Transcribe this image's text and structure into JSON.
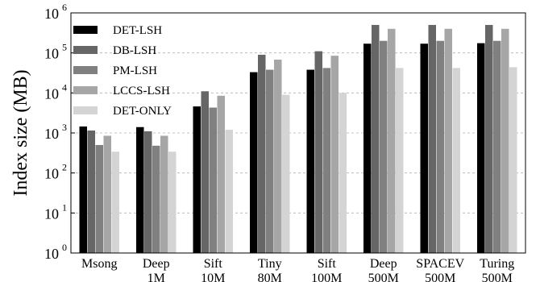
{
  "chart_data": {
    "type": "bar",
    "title": "",
    "xlabel": "",
    "ylabel": "Index size (MB)",
    "y_scale": "log",
    "ylim": [
      1,
      1000000
    ],
    "y_ticks": [
      {
        "value": 1,
        "base": "10",
        "exp": "0"
      },
      {
        "value": 10,
        "base": "10",
        "exp": "1"
      },
      {
        "value": 100,
        "base": "10",
        "exp": "2"
      },
      {
        "value": 1000,
        "base": "10",
        "exp": "3"
      },
      {
        "value": 10000,
        "base": "10",
        "exp": "4"
      },
      {
        "value": 100000,
        "base": "10",
        "exp": "5"
      },
      {
        "value": 1000000,
        "base": "10",
        "exp": "6"
      }
    ],
    "grid": "horizontal dashed at major ticks",
    "legend_placement": "top-left",
    "categories": [
      [
        "Msong"
      ],
      [
        "Deep",
        "1M"
      ],
      [
        "Sift",
        "10M"
      ],
      [
        "Tiny",
        "80M"
      ],
      [
        "Sift",
        "100M"
      ],
      [
        "Deep",
        "500M"
      ],
      [
        "SPACEV",
        "500M"
      ],
      [
        "Turing",
        "500M"
      ]
    ],
    "series": [
      {
        "name": "DET-LSH",
        "color": "#000000",
        "values": [
          1450,
          1400,
          4600,
          33000,
          38000,
          170000,
          170000,
          175000
        ]
      },
      {
        "name": "DB-LSH",
        "color": "#666666",
        "values": [
          1150,
          1100,
          11000,
          90000,
          110000,
          500000,
          500000,
          500000
        ]
      },
      {
        "name": "PM-LSH",
        "color": "#808080",
        "values": [
          500,
          480,
          4300,
          38000,
          42000,
          200000,
          200000,
          200000
        ]
      },
      {
        "name": "LCCS-LSH",
        "color": "#a6a6a6",
        "values": [
          850,
          850,
          8500,
          68000,
          85000,
          400000,
          400000,
          400000
        ]
      },
      {
        "name": "DET-ONLY",
        "color": "#d4d4d4",
        "values": [
          340,
          340,
          1200,
          9000,
          10000,
          42000,
          42000,
          44000
        ]
      }
    ]
  }
}
